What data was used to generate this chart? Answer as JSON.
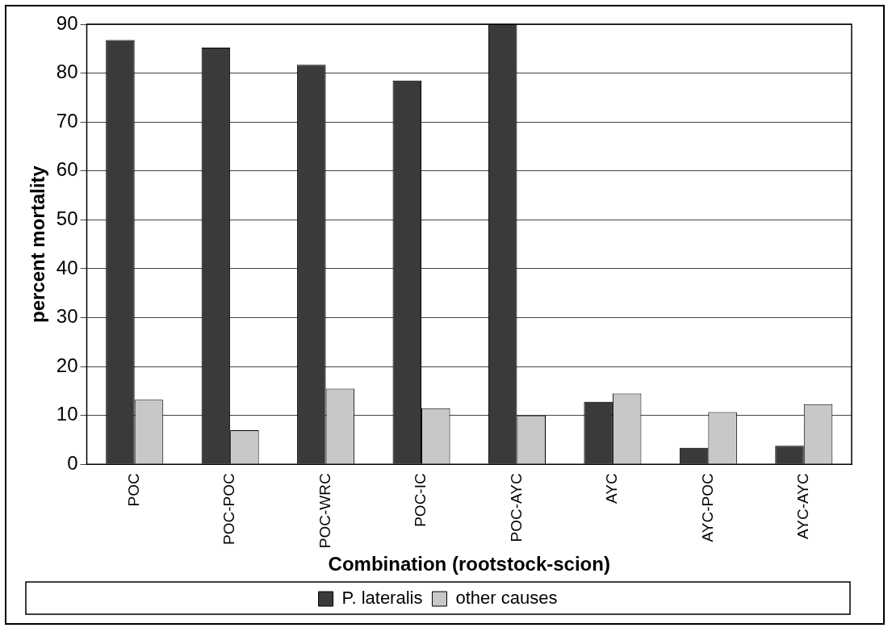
{
  "chart_data": {
    "type": "bar",
    "xlabel": "Combination (rootstock-scion)",
    "ylabel": "percent mortality",
    "categories": [
      "POC",
      "POC-POC",
      "POC-WRC",
      "POC-IC",
      "POC-AYC",
      "AYC",
      "AYC-POC",
      "AYC-AYC"
    ],
    "series": [
      {
        "name": "P. lateralis",
        "color": "#3a3a3a",
        "values": [
          86.8,
          85.2,
          81.7,
          78.5,
          90,
          12.8,
          3.4,
          3.8
        ]
      },
      {
        "name": "other causes",
        "color": "#c8c8c8",
        "values": [
          13.2,
          7,
          15.5,
          11.5,
          10,
          14.5,
          10.7,
          12.3
        ]
      }
    ],
    "ylim": [
      0,
      90
    ],
    "yticks": [
      0,
      10,
      20,
      30,
      40,
      50,
      60,
      70,
      80,
      90
    ],
    "grid": "y",
    "legend": "bottom"
  }
}
